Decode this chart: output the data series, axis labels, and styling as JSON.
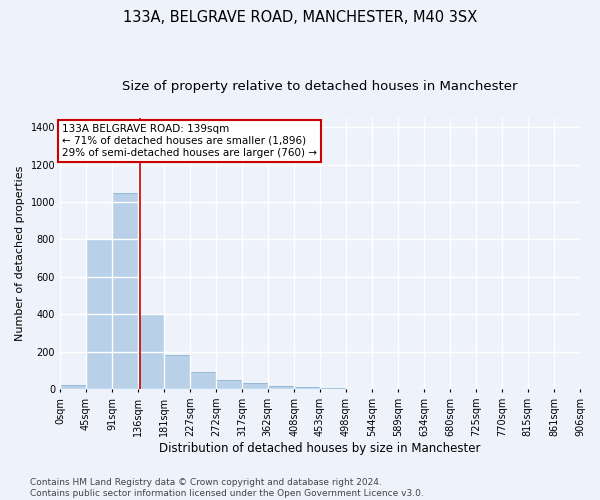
{
  "title": "133A, BELGRAVE ROAD, MANCHESTER, M40 3SX",
  "subtitle": "Size of property relative to detached houses in Manchester",
  "xlabel": "Distribution of detached houses by size in Manchester",
  "ylabel": "Number of detached properties",
  "bar_color": "#b8d0e8",
  "bar_edge_color": "#8ab4d4",
  "vline_color": "#cc0000",
  "vline_value": 139,
  "annotation_text": "133A BELGRAVE ROAD: 139sqm\n← 71% of detached houses are smaller (1,896)\n29% of semi-detached houses are larger (760) →",
  "annotation_box_color": "#ffffff",
  "annotation_box_edge": "#cc0000",
  "bin_edges": [
    0,
    45,
    91,
    136,
    181,
    227,
    272,
    317,
    362,
    408,
    453,
    498,
    544,
    589,
    634,
    680,
    725,
    770,
    815,
    861,
    906
  ],
  "bar_values": [
    25,
    800,
    1050,
    400,
    185,
    95,
    48,
    33,
    20,
    12,
    8,
    3,
    1,
    0,
    0,
    0,
    0,
    0,
    0,
    0
  ],
  "ylim": [
    0,
    1450
  ],
  "yticks": [
    0,
    200,
    400,
    600,
    800,
    1000,
    1200,
    1400
  ],
  "background_color": "#eef2fa",
  "grid_color": "#ffffff",
  "footer": "Contains HM Land Registry data © Crown copyright and database right 2024.\nContains public sector information licensed under the Open Government Licence v3.0.",
  "title_fontsize": 10.5,
  "subtitle_fontsize": 9.5,
  "xlabel_fontsize": 8.5,
  "ylabel_fontsize": 8,
  "tick_fontsize": 7,
  "annotation_fontsize": 7.5,
  "footer_fontsize": 6.5
}
